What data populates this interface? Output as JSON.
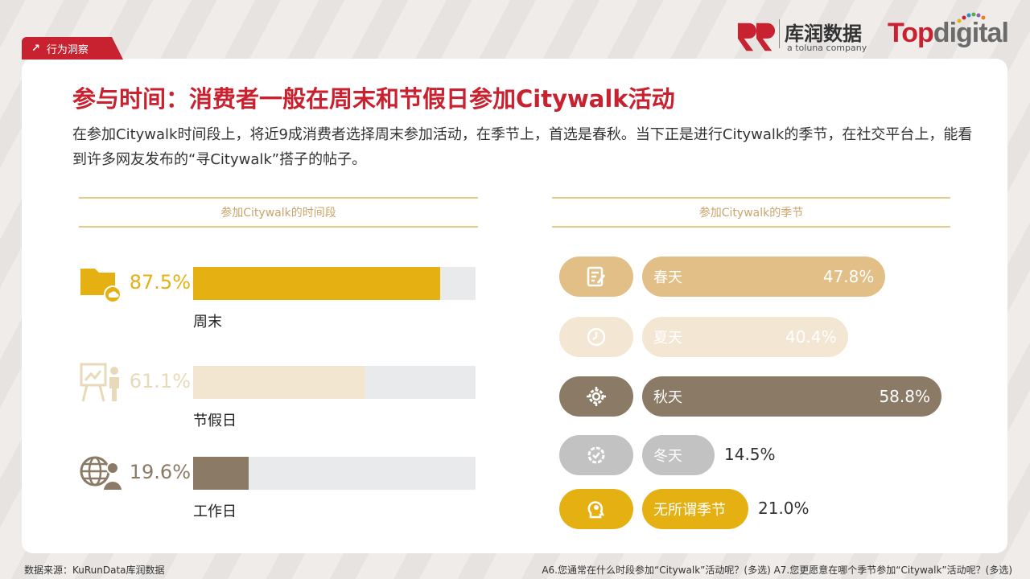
{
  "tag": "行为洞察",
  "logo": {
    "cn": "库润数据",
    "sub": "a toluna company",
    "brand_a": "Top",
    "brand_b": "digital"
  },
  "title": "参与时间：消费者一般在周末和节假日参加Citywalk活动",
  "subtitle": "在参加Citywalk时间段上，将近9成消费者选择周末参加活动，在季节上，首选是春秋。当下正是进行Citywalk的季节，在社交平台上，能看到许多网友发布的“寻Citywalk”搭子的帖子。",
  "footer": {
    "source": "数据来源：KuRunData库润数据",
    "questions": "A6.您通常在什么时段参加“Citywalk”活动呢？(多选) A7.您更愿意在哪个季节参加“Citywalk”活动呢？(多选)"
  },
  "chart_data": [
    {
      "type": "bar",
      "title": "参加Citywalk的时间段",
      "unit": "%",
      "ylim": [
        0,
        100
      ],
      "categories": [
        "周末",
        "节假日",
        "工作日"
      ],
      "values": [
        87.5,
        61.1,
        19.6
      ],
      "value_labels": [
        "87.5%",
        "61.1%",
        "19.6%"
      ],
      "colors": [
        "#e5b012",
        "#f2e6d0",
        "#8b7a66"
      ],
      "icons": [
        "folder-icon",
        "presentation-icon",
        "globe-user-icon"
      ]
    },
    {
      "type": "bar",
      "title": "参加Citywalk的季节",
      "unit": "%",
      "ylim": [
        0,
        60
      ],
      "categories": [
        "春天",
        "夏天",
        "秋天",
        "冬天",
        "无所谓季节"
      ],
      "values": [
        47.8,
        40.4,
        58.8,
        14.5,
        21.0
      ],
      "value_labels": [
        "47.8%",
        "40.4%",
        "58.8%",
        "14.5%",
        "21.0%"
      ],
      "colors": [
        "#e1bf86",
        "#f3e6d2",
        "#8b7a66",
        "#c2c2c2",
        "#e5b012"
      ],
      "icons": [
        "checklist-icon",
        "clock-icon",
        "gear-icon",
        "settings-icon",
        "head-idea-icon"
      ]
    }
  ]
}
